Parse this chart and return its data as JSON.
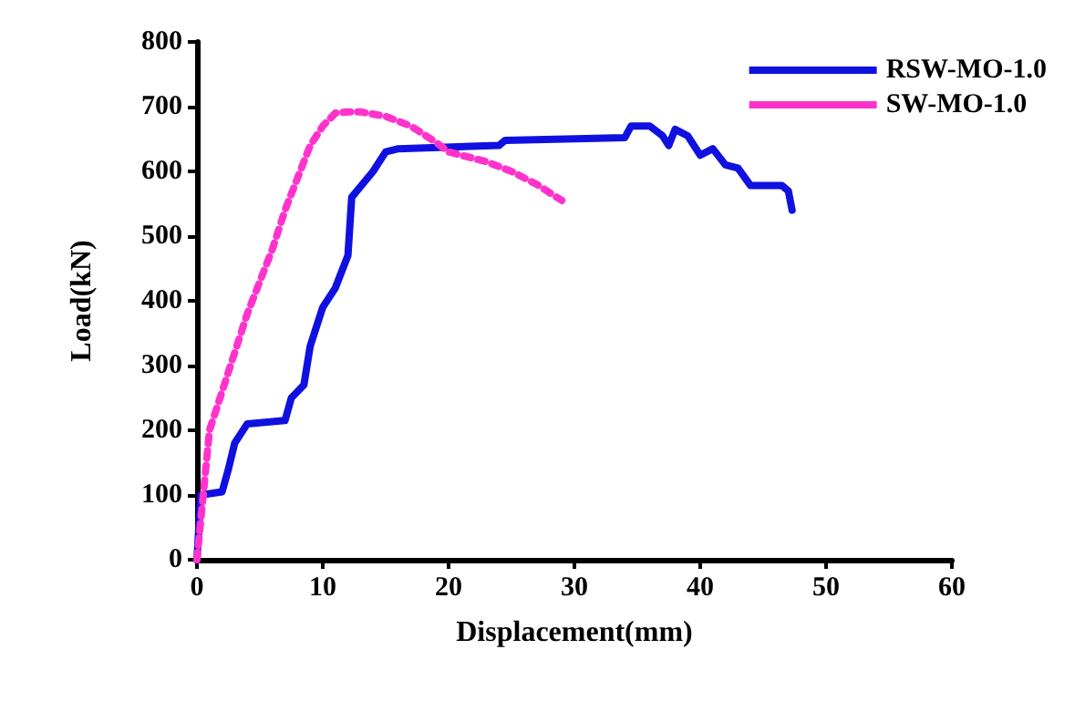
{
  "chart_data": {
    "type": "line",
    "xlabel": "Displacement(mm)",
    "ylabel": "Load(kN)",
    "xlim": [
      0,
      60
    ],
    "xticks": [
      0,
      10,
      20,
      30,
      40,
      50,
      60
    ],
    "ylim": [
      0,
      800
    ],
    "yticks": [
      0,
      100,
      200,
      300,
      400,
      500,
      600,
      700,
      800
    ],
    "grid": false,
    "legend": "top right",
    "marker": "none",
    "series": [
      {
        "name": "RSW-MO-1.0",
        "color": "#1010e0",
        "line_style": "solid",
        "x": [
          0,
          0.3,
          2,
          2.5,
          3,
          4,
          7,
          7.5,
          8.5,
          9,
          10,
          11,
          12,
          12.3,
          14,
          15,
          16,
          24,
          24.5,
          34,
          34.5,
          36,
          37,
          37.5,
          38,
          39,
          40,
          41,
          42,
          43,
          44,
          46.5,
          47,
          47.3
        ],
        "values": [
          0,
          100,
          105,
          140,
          180,
          210,
          215,
          250,
          270,
          330,
          390,
          420,
          470,
          560,
          600,
          630,
          635,
          640,
          648,
          652,
          670,
          670,
          655,
          640,
          665,
          655,
          625,
          635,
          610,
          605,
          578,
          578,
          570,
          540
        ]
      },
      {
        "name": "SW-MO-1.0",
        "color": "#ff33cc",
        "line_style": "dotted",
        "x": [
          0,
          0.5,
          1,
          2,
          3,
          4,
          5,
          6,
          7,
          8,
          9,
          10,
          11,
          12,
          13,
          15,
          17,
          19,
          20,
          22,
          23,
          25,
          27,
          29
        ],
        "values": [
          0,
          100,
          200,
          260,
          320,
          380,
          430,
          480,
          540,
          590,
          640,
          670,
          690,
          692,
          692,
          685,
          670,
          645,
          630,
          620,
          615,
          600,
          580,
          555
        ]
      }
    ]
  }
}
